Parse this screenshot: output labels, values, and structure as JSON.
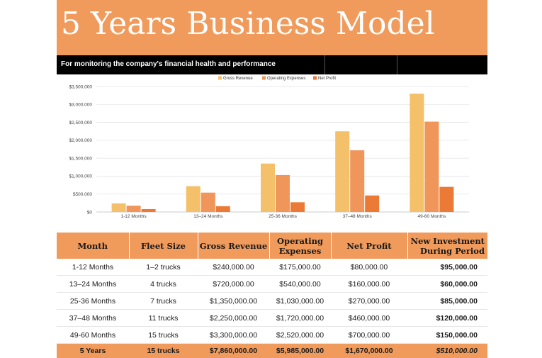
{
  "header": {
    "title": "5 Years Business Model",
    "subtitle": "For monitoring the company's financial health and performance"
  },
  "colors": {
    "accent": "#f09a5c",
    "gross_revenue": "#f5c06a",
    "operating_expenses": "#f0965a",
    "net_profit": "#ea7a35"
  },
  "chart_data": {
    "type": "bar",
    "categories": [
      "1-12 Months",
      "13–24 Months",
      "25-36 Months",
      "37–48 Months",
      "49-60 Months"
    ],
    "series": [
      {
        "name": "Gross Revenue",
        "values": [
          240000,
          720000,
          1350000,
          2250000,
          3300000
        ]
      },
      {
        "name": "Operating Expenses",
        "values": [
          175000,
          540000,
          1030000,
          1720000,
          2520000
        ]
      },
      {
        "name": "Net Profit",
        "values": [
          80000,
          160000,
          270000,
          460000,
          700000
        ]
      }
    ],
    "yticks": [
      "$0",
      "$500,000",
      "$1,000,000",
      "$1,500,000",
      "$2,000,000",
      "$2,500,000",
      "$3,000,000",
      "$3,500,000"
    ],
    "ylim": [
      0,
      3500000
    ],
    "legend_position": "top-center",
    "grid": true
  },
  "table": {
    "headers": [
      "Month",
      "Fleet Size",
      "Gross Revenue",
      "Operating Expenses",
      "Net Profit",
      "New Investment During Period"
    ],
    "rows": [
      [
        "1-12 Months",
        "1–2 trucks",
        "$240,000.00",
        "$175,000.00",
        "$80,000.00",
        "$95,000.00"
      ],
      [
        "13–24 Months",
        "4 trucks",
        "$720,000.00",
        "$540,000.00",
        "$160,000.00",
        "$60,000.00"
      ],
      [
        "25-36 Months",
        "7 trucks",
        "$1,350,000.00",
        "$1,030,000.00",
        "$270,000.00",
        "$85,000.00"
      ],
      [
        "37–48 Months",
        "11 trucks",
        "$2,250,000.00",
        "$1,720,000.00",
        "$460,000.00",
        "$120,000.00"
      ],
      [
        "49-60 Months",
        "15 trucks",
        "$3,300,000.00",
        "$2,520,000.00",
        "$700,000.00",
        "$150,000.00"
      ]
    ],
    "total": [
      "5 Years",
      "15 trucks",
      "$7,860,000.00",
      "$5,985,000.00",
      "$1,670,000.00",
      "$510,000.00"
    ]
  }
}
